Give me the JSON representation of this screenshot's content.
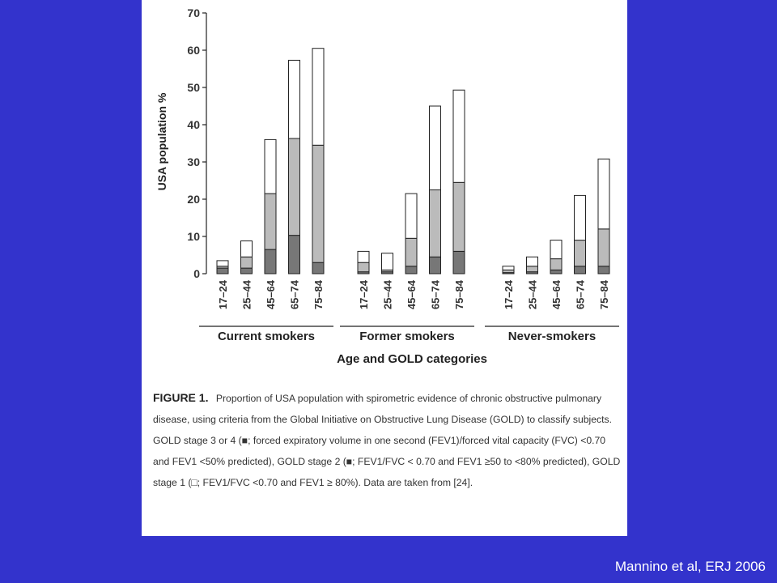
{
  "slide": {
    "background_color": "#3333cc",
    "citation": "Mannino et al, ERJ 2006"
  },
  "figure": {
    "label": "FIGURE 1.",
    "caption": "Proportion of USA population with spirometric evidence of chronic obstructive pulmonary disease, using criteria from the Global Initiative on Obstructive Lung Disease (GOLD) to classify subjects. GOLD stage 3 or 4 (■; forced expiratory volume in one second (FEV1)/forced vital capacity (FVC) <0.70 and FEV1 <50% predicted), GOLD stage 2 (■; FEV1/FVC < 0.70 and FEV1 ≥50 to <80% predicted), GOLD stage 1 (□; FEV1/FVC <0.70 and FEV1 ≥ 80%). Data are taken from [24]."
  },
  "chart_data": {
    "type": "bar",
    "stacked": true,
    "title": "",
    "xlabel": "Age and GOLD categories",
    "ylabel": "USA population %",
    "ylim": [
      0,
      70
    ],
    "yticks": [
      0,
      10,
      20,
      30,
      40,
      50,
      60,
      70
    ],
    "groups": [
      {
        "name": "Current smokers",
        "categories": [
          "17–24",
          "25–44",
          "45–64",
          "65–74",
          "75–84"
        ],
        "stage34": [
          1.5,
          1.5,
          6.5,
          10.3,
          3
        ],
        "stage2": [
          0.5,
          3,
          15,
          26,
          31.5
        ],
        "stage1": [
          1.5,
          4.3,
          14.5,
          21,
          26
        ]
      },
      {
        "name": "Former smokers",
        "categories": [
          "17–24",
          "25–44",
          "45–64",
          "65–74",
          "75–84"
        ],
        "stage34": [
          0.5,
          0.5,
          2,
          4.5,
          6
        ],
        "stage2": [
          2.5,
          0.5,
          7.5,
          18,
          18.5
        ],
        "stage1": [
          3,
          4.5,
          12,
          22.5,
          24.8
        ]
      },
      {
        "name": "Never-smokers",
        "categories": [
          "17–24",
          "25–44",
          "45–64",
          "65–74",
          "75–84"
        ],
        "stage34": [
          0.3,
          0.5,
          1,
          2,
          2
        ],
        "stage2": [
          0.7,
          1.5,
          3,
          7,
          10
        ],
        "stage1": [
          1,
          2.5,
          5,
          12,
          18.8
        ]
      }
    ],
    "stage_colors": {
      "stage34": "#777777",
      "stage2": "#bbbbbb",
      "stage1": "#ffffff"
    }
  }
}
